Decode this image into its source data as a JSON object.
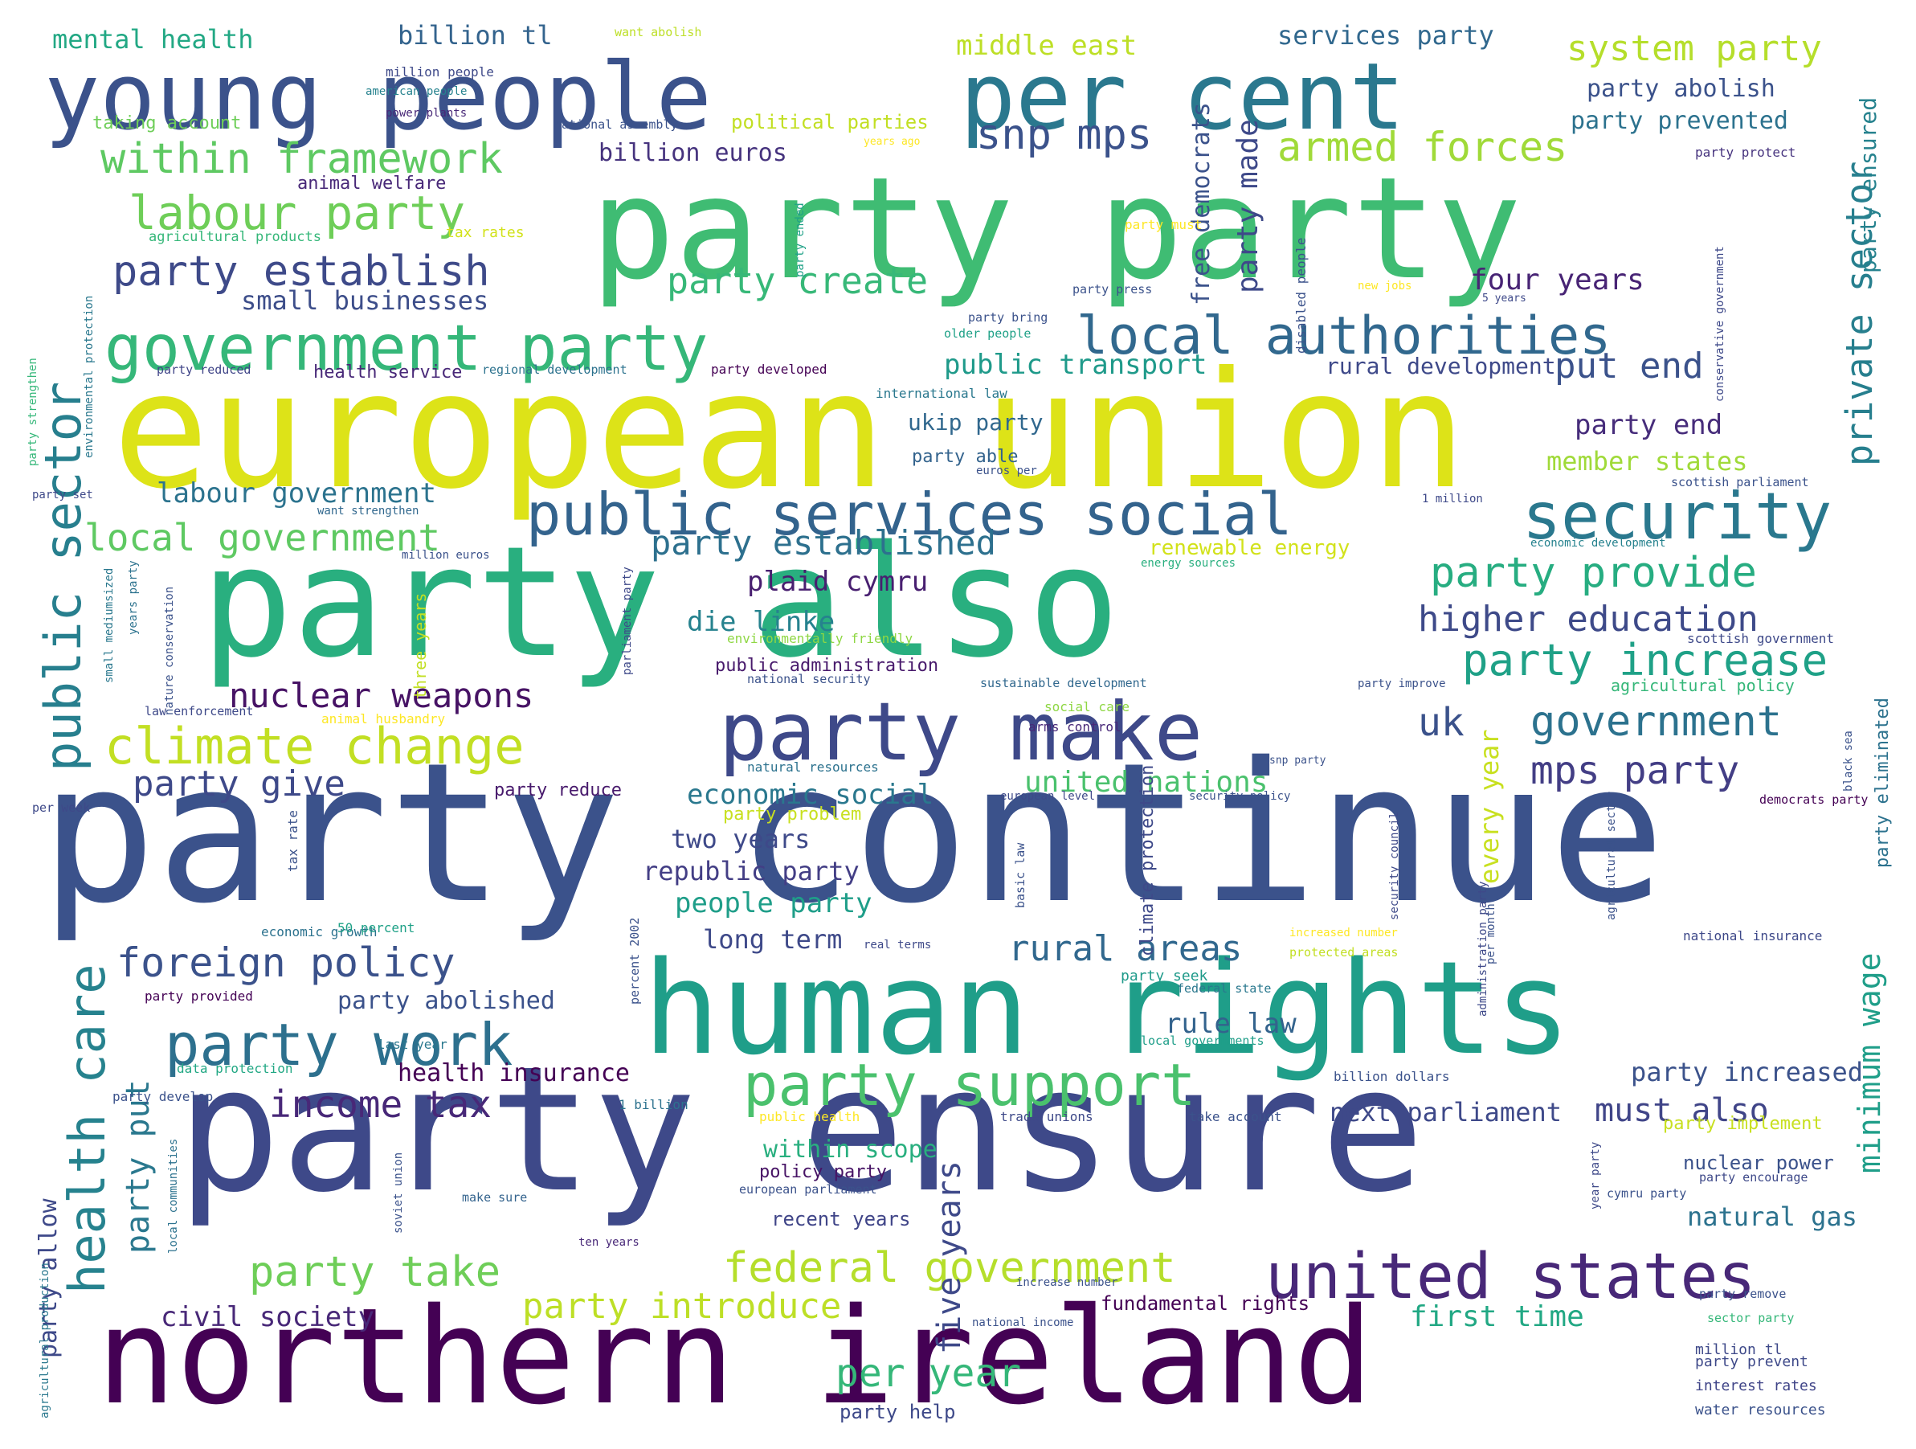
{
  "words": [
    {
      "text": "party continue",
      "color": "#3b528b"
    },
    {
      "text": "party ensure",
      "color": "#3e4989"
    },
    {
      "text": "european union",
      "color": "#dde318"
    },
    {
      "text": "party also",
      "color": "#29af7f"
    },
    {
      "text": "party party",
      "color": "#3fbc73"
    },
    {
      "text": "human rights",
      "color": "#1f9e89"
    },
    {
      "text": "northern ireland",
      "color": "#440154"
    },
    {
      "text": "young people",
      "color": "#3b528b"
    },
    {
      "text": "per cent",
      "color": "#2a788e"
    },
    {
      "text": "party make",
      "color": "#3e4989"
    },
    {
      "text": "government party",
      "color": "#35b779"
    },
    {
      "text": "public services social",
      "color": "#33638d"
    },
    {
      "text": "security",
      "color": "#2a788e"
    },
    {
      "text": "united states",
      "color": "#482878"
    },
    {
      "text": "party support",
      "color": "#4ac16d"
    },
    {
      "text": "climate change",
      "color": "#c2df23"
    },
    {
      "text": "party work",
      "color": "#2d708e"
    },
    {
      "text": "health care",
      "color": "#26828e"
    },
    {
      "text": "public sector",
      "color": "#277f8e"
    },
    {
      "text": "local authorities",
      "color": "#31688e"
    },
    {
      "text": "labour party",
      "color": "#6ece58"
    },
    {
      "text": "within framework",
      "color": "#5ec962"
    },
    {
      "text": "party establish",
      "color": "#3e4a89"
    },
    {
      "text": "snp mps",
      "color": "#3b528b"
    },
    {
      "text": "armed forces",
      "color": "#a0da39"
    },
    {
      "text": "system party",
      "color": "#b5de2b"
    },
    {
      "text": "middle east",
      "color": "#bddf26"
    },
    {
      "text": "services party",
      "color": "#31688e"
    },
    {
      "text": "mental health",
      "color": "#22a884"
    },
    {
      "text": "billion tl",
      "color": "#33638d"
    },
    {
      "text": "party abolish",
      "color": "#3b528b"
    },
    {
      "text": "party prevented",
      "color": "#2c728e"
    },
    {
      "text": "billion euros",
      "color": "#46337e"
    },
    {
      "text": "party create",
      "color": "#37b878"
    },
    {
      "text": "small businesses",
      "color": "#3d4e8a"
    },
    {
      "text": "four years",
      "color": "#482475"
    },
    {
      "text": "public transport",
      "color": "#1f9a8a"
    },
    {
      "text": "rural development",
      "color": "#3e4989"
    },
    {
      "text": "put end",
      "color": "#3b528b"
    },
    {
      "text": "party end",
      "color": "#472d7b"
    },
    {
      "text": "private sector",
      "color": "#277f8e"
    },
    {
      "text": "party established",
      "color": "#2d708e"
    },
    {
      "text": "local government",
      "color": "#5ec962"
    },
    {
      "text": "labour government",
      "color": "#2c738e"
    },
    {
      "text": "plaid cymru",
      "color": "#481f70"
    },
    {
      "text": "die linke",
      "color": "#26828e"
    },
    {
      "text": "party provide",
      "color": "#27ad81"
    },
    {
      "text": "higher education",
      "color": "#3e4a89"
    },
    {
      "text": "party increase",
      "color": "#1fa187"
    },
    {
      "text": "nuclear weapons",
      "color": "#471365"
    },
    {
      "text": "government",
      "color": "#2c728e"
    },
    {
      "text": "uk",
      "color": "#3b528b"
    },
    {
      "text": "mps party",
      "color": "#433e85"
    },
    {
      "text": "party give",
      "color": "#3e4989"
    },
    {
      "text": "united nations",
      "color": "#4ac16d"
    },
    {
      "text": "economic social",
      "color": "#2a788e"
    },
    {
      "text": "foreign policy",
      "color": "#3b528b"
    },
    {
      "text": "rural areas",
      "color": "#31688e"
    },
    {
      "text": "two years",
      "color": "#3e4989"
    },
    {
      "text": "republic party",
      "color": "#433e85"
    },
    {
      "text": "people party",
      "color": "#1f9e89"
    },
    {
      "text": "long term",
      "color": "#3e4989"
    },
    {
      "text": "income tax",
      "color": "#482878"
    },
    {
      "text": "party abolished",
      "color": "#3b528b"
    },
    {
      "text": "rule law",
      "color": "#33638d"
    },
    {
      "text": "health insurance",
      "color": "#440154"
    },
    {
      "text": "party increased",
      "color": "#3b528b"
    },
    {
      "text": "must also",
      "color": "#404588"
    },
    {
      "text": "next parliament",
      "color": "#3e4989"
    },
    {
      "text": "party put",
      "color": "#2a788e"
    },
    {
      "text": "minimum wage",
      "color": "#1f9e89"
    },
    {
      "text": "federal government",
      "color": "#b5de2b"
    },
    {
      "text": "party take",
      "color": "#6ece58"
    },
    {
      "text": "party introduce",
      "color": "#bddf26"
    },
    {
      "text": "civil society",
      "color": "#482878"
    },
    {
      "text": "per year",
      "color": "#35b779"
    },
    {
      "text": "five years",
      "color": "#3e4989"
    },
    {
      "text": "first time",
      "color": "#22a884"
    },
    {
      "text": "natural gas",
      "color": "#2c728e"
    },
    {
      "text": "nuclear power",
      "color": "#3b528b"
    },
    {
      "text": "party allow",
      "color": "#3e4989"
    },
    {
      "text": "free democrats",
      "color": "#3b528b"
    },
    {
      "text": "party made",
      "color": "#3e4989"
    },
    {
      "text": "within scope",
      "color": "#29af7f"
    },
    {
      "text": "recent years",
      "color": "#404588"
    },
    {
      "text": "fundamental rights",
      "color": "#440154"
    },
    {
      "text": "party help",
      "color": "#3e4989"
    },
    {
      "text": "every year",
      "color": "#c8e020"
    },
    {
      "text": "ukip party",
      "color": "#31688e"
    },
    {
      "text": "party able",
      "color": "#33638d"
    },
    {
      "text": "member states",
      "color": "#a0da39"
    },
    {
      "text": "renewable energy",
      "color": "#d2e21b"
    },
    {
      "text": "policy party",
      "color": "#471365"
    },
    {
      "text": "public administration",
      "color": "#481a6c"
    },
    {
      "text": "party ensured",
      "color": "#26828e"
    },
    {
      "text": "water resources",
      "color": "#3b528b"
    },
    {
      "text": "interest rates",
      "color": "#404588"
    },
    {
      "text": "party prevent",
      "color": "#3e4989"
    },
    {
      "text": "million tl",
      "color": "#3e4989"
    },
    {
      "text": "health service",
      "color": "#482878"
    },
    {
      "text": "party reduce",
      "color": "#481a6c"
    },
    {
      "text": "animal welfare",
      "color": "#482878"
    },
    {
      "text": "party problem",
      "color": "#c8e020"
    },
    {
      "text": "political parties",
      "color": "#c2df23"
    },
    {
      "text": "agricultural policy",
      "color": "#35b779"
    },
    {
      "text": "party protect",
      "color": "#46337e"
    },
    {
      "text": "economic growth",
      "color": "#2c728e"
    },
    {
      "text": "international law",
      "color": "#2a788e"
    },
    {
      "text": "sustainable development",
      "color": "#31688e"
    },
    {
      "text": "scottish government",
      "color": "#3e4989"
    },
    {
      "text": "scottish parliament",
      "color": "#3b528b"
    },
    {
      "text": "national insurance",
      "color": "#3e4989"
    },
    {
      "text": "billion dollars",
      "color": "#3b528b"
    },
    {
      "text": "local governments",
      "color": "#1f9e89"
    },
    {
      "text": "federal state",
      "color": "#2a788e"
    },
    {
      "text": "party seek",
      "color": "#1f9a8a"
    },
    {
      "text": "climate protection",
      "color": "#3e4989"
    },
    {
      "text": "party implement",
      "color": "#c8e020"
    },
    {
      "text": "social care",
      "color": "#8fd744"
    },
    {
      "text": "natural resources",
      "color": "#2c728e"
    },
    {
      "text": "arms control",
      "color": "#482878"
    },
    {
      "text": "environmentally friendly",
      "color": "#8fd744"
    },
    {
      "text": "national security",
      "color": "#3b528b"
    },
    {
      "text": "data protection",
      "color": "#22a884"
    },
    {
      "text": "agricultural products",
      "color": "#35b779"
    },
    {
      "text": "taking account",
      "color": "#6ece58"
    },
    {
      "text": "american people",
      "color": "#26828e"
    },
    {
      "text": "million people",
      "color": "#3e4989"
    },
    {
      "text": "power plants",
      "color": "#482878"
    },
    {
      "text": "want abolish",
      "color": "#bddf26"
    },
    {
      "text": "national assembly",
      "color": "#3b528b"
    },
    {
      "text": "tax rates",
      "color": "#d2e21b"
    },
    {
      "text": "party must",
      "color": "#fde725"
    },
    {
      "text": "regional development",
      "color": "#2c728e"
    },
    {
      "text": "party developed",
      "color": "#440154"
    },
    {
      "text": "party reduced",
      "color": "#404588"
    },
    {
      "text": "party strengthen",
      "color": "#35b779"
    },
    {
      "text": "environmental protection",
      "color": "#2a788e"
    },
    {
      "text": "party set",
      "color": "#3e4989"
    },
    {
      "text": "want strengthen",
      "color": "#31688e"
    },
    {
      "text": "million euros",
      "color": "#3b528b"
    },
    {
      "text": "party bring",
      "color": "#3b528b"
    },
    {
      "text": "older people",
      "color": "#1fa187"
    },
    {
      "text": "party press",
      "color": "#3b528b"
    },
    {
      "text": "new jobs",
      "color": "#fde725"
    },
    {
      "text": "5 years",
      "color": "#3e4989"
    },
    {
      "text": "euros per",
      "color": "#3b528b"
    },
    {
      "text": "1 million",
      "color": "#3e4989"
    },
    {
      "text": "energy sources",
      "color": "#29af7f"
    },
    {
      "text": "economic development",
      "color": "#26828e"
    },
    {
      "text": "party improve",
      "color": "#3b528b"
    },
    {
      "text": "law enforcement",
      "color": "#3e4989"
    },
    {
      "text": "animal husbandry",
      "color": "#fde725"
    },
    {
      "text": "small mediumsized",
      "color": "#2a788e"
    },
    {
      "text": "nature conservation",
      "color": "#3b528b"
    },
    {
      "text": "years party",
      "color": "#2c728e"
    },
    {
      "text": "three years",
      "color": "#c2df23"
    },
    {
      "text": "per week",
      "color": "#3e4989"
    },
    {
      "text": "tax rate",
      "color": "#3b528b"
    },
    {
      "text": "50 percent",
      "color": "#1fa187"
    },
    {
      "text": "party provided",
      "color": "#440154"
    },
    {
      "text": "last year",
      "color": "#2a788e"
    },
    {
      "text": "party develop",
      "color": "#3b528b"
    },
    {
      "text": "1 billion",
      "color": "#2c728e"
    },
    {
      "text": "public health",
      "color": "#fde725"
    },
    {
      "text": "trade unions",
      "color": "#3e4989"
    },
    {
      "text": "take account",
      "color": "#3b528b"
    },
    {
      "text": "make sure",
      "color": "#33638d"
    },
    {
      "text": "soviet union",
      "color": "#3b528b"
    },
    {
      "text": "local communities",
      "color": "#2c728e"
    },
    {
      "text": "agricultural production",
      "color": "#2a788e"
    },
    {
      "text": "european parliament",
      "color": "#3b528b"
    },
    {
      "text": "ten years",
      "color": "#482878"
    },
    {
      "text": "increase number",
      "color": "#3b528b"
    },
    {
      "text": "national income",
      "color": "#3b528b"
    },
    {
      "text": "year party",
      "color": "#3e4989"
    },
    {
      "text": "cymru party",
      "color": "#3b528b"
    },
    {
      "text": "party encourage",
      "color": "#3e4989"
    },
    {
      "text": "party remove",
      "color": "#3b528b"
    },
    {
      "text": "sector party",
      "color": "#35b779"
    },
    {
      "text": "basic law",
      "color": "#3b528b"
    },
    {
      "text": "security council",
      "color": "#3e4989"
    },
    {
      "text": "security policy",
      "color": "#3b528b"
    },
    {
      "text": "european level",
      "color": "#3e4989"
    },
    {
      "text": "democrats party",
      "color": "#440154"
    },
    {
      "text": "party eliminated",
      "color": "#2c728e"
    },
    {
      "text": "black sea",
      "color": "#3b528b"
    },
    {
      "text": "conservative government",
      "color": "#3e4989"
    },
    {
      "text": "disabled people",
      "color": "#3b528b"
    },
    {
      "text": "party ended",
      "color": "#1fa187"
    },
    {
      "text": "parliament party",
      "color": "#3e4989"
    },
    {
      "text": "percent 2002",
      "color": "#3b528b"
    },
    {
      "text": "real terms",
      "color": "#3e4989"
    },
    {
      "text": "increased number",
      "color": "#fde725"
    },
    {
      "text": "protected areas",
      "color": "#c2df23"
    },
    {
      "text": "per month",
      "color": "#3b528b"
    },
    {
      "text": "administration party",
      "color": "#3e4989"
    },
    {
      "text": "agricultural sector",
      "color": "#3b528b"
    },
    {
      "text": "snp party",
      "color": "#3b528b"
    },
    {
      "text": "years ago",
      "color": "#fde725"
    }
  ]
}
